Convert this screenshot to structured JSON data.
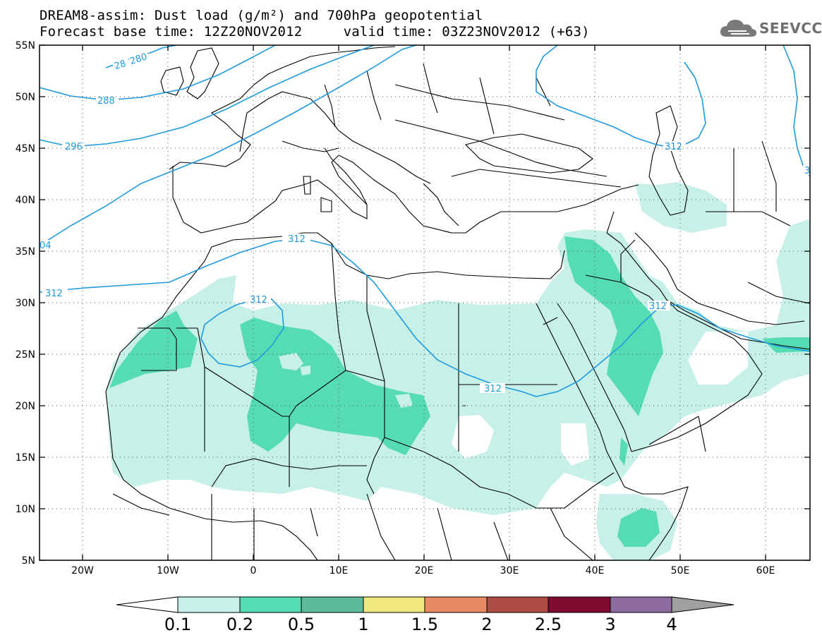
{
  "title": {
    "line1": "DREAM8-assim: Dust load (g/m²) and 700hPa geopotential",
    "line2": "Forecast base time: 12Z20NOV2012     valid time: 03Z23NOV2012 (+63)"
  },
  "logo": {
    "text": "SEEVCCC",
    "icon": "cloud-icon"
  },
  "map": {
    "lat_labels": [
      "55N",
      "50N",
      "45N",
      "40N",
      "35N",
      "30N",
      "25N",
      "20N",
      "15N",
      "10N",
      "5N"
    ],
    "lon_labels": [
      "20W",
      "10W",
      "0",
      "10E",
      "20E",
      "30E",
      "40E",
      "50E",
      "60E"
    ],
    "contour_labels": [
      "28",
      "280",
      "288",
      "296",
      "04",
      "312",
      "312",
      "312",
      "312",
      "312",
      "312",
      "3"
    ]
  },
  "colorbar": {
    "labels": [
      "0.1",
      "0.2",
      "0.5",
      "1",
      "1.5",
      "2",
      "2.5",
      "3",
      "4"
    ],
    "colors": [
      "#ffffff",
      "#c6f0e8",
      "#55dcb4",
      "#5cb99a",
      "#f0e87e",
      "#e98a62",
      "#ae4d44",
      "#7e0b2e",
      "#8c6b9e",
      "#a0a0a0"
    ]
  },
  "colors": {
    "contour": "#1e9be0",
    "land_border": "#000000",
    "dust_light": "#c6f0e8",
    "dust_mid": "#55dcb4"
  }
}
